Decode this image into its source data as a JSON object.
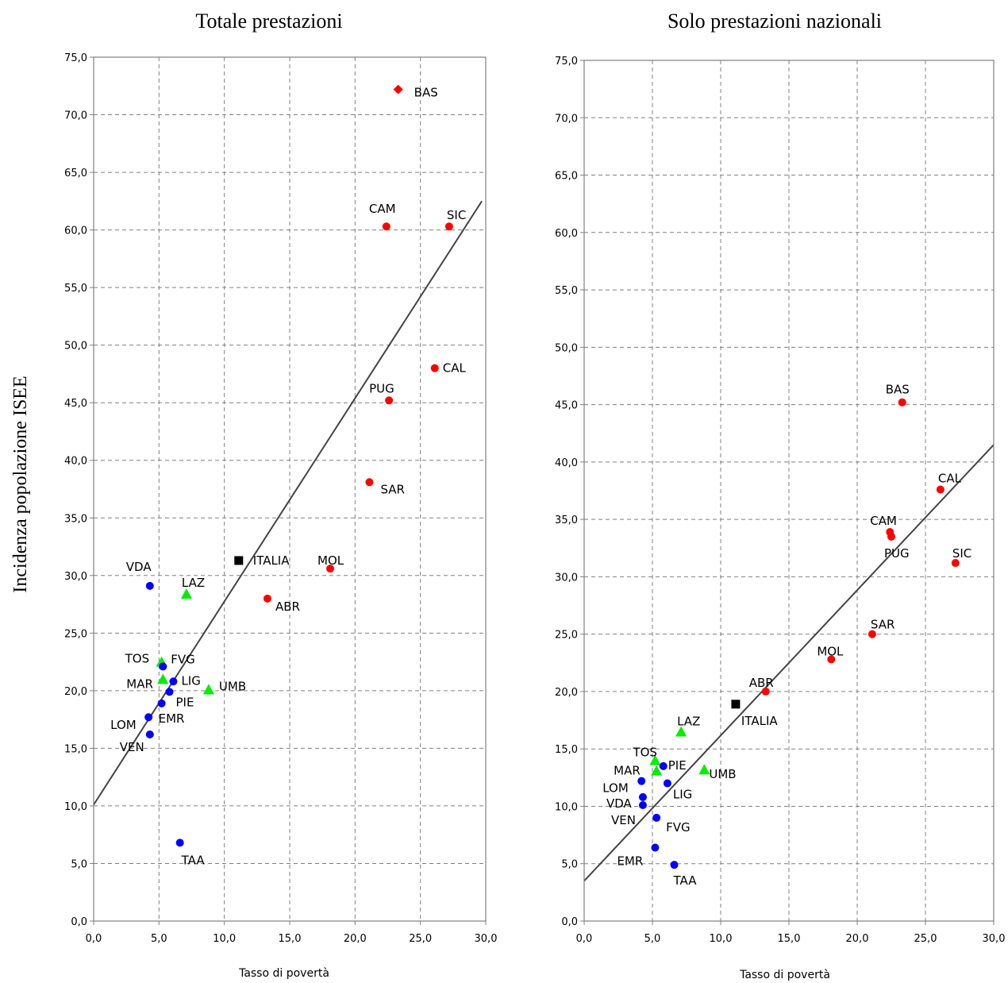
{
  "ylabel": "Incidenza popolazione ISEE",
  "colors": {
    "south": "#ff0000",
    "centre": "#00ee00",
    "north": "#0000ff",
    "italy": "#000000"
  },
  "chart_data": [
    {
      "type": "scatter",
      "title": "Totale prestazioni",
      "xlabel": "Tasso di povertà",
      "xlim": [
        0,
        30
      ],
      "ylim": [
        0,
        75
      ],
      "x_ticks": [
        "0,0",
        "5,0",
        "10,0",
        "15,0",
        "20,0",
        "25,0",
        "30,0"
      ],
      "y_ticks": [
        "0,0",
        "5,0",
        "10,0",
        "15,0",
        "20,0",
        "25,0",
        "30,0",
        "35,0",
        "40,0",
        "45,0",
        "50,0",
        "55,0",
        "60,0",
        "65,0",
        "70,0",
        "75,0"
      ],
      "grid": true,
      "trendline": {
        "x": [
          0,
          29.7
        ],
        "y": [
          10.1,
          62.5
        ]
      },
      "points": [
        {
          "label": "BAS",
          "x": 23.3,
          "y": 72.2,
          "group": "south",
          "shape": "diamond"
        },
        {
          "label": "CAM",
          "x": 22.4,
          "y": 60.3,
          "group": "south",
          "shape": "circle"
        },
        {
          "label": "SIC",
          "x": 27.2,
          "y": 60.3,
          "group": "south",
          "shape": "circle"
        },
        {
          "label": "CAL",
          "x": 26.1,
          "y": 48.0,
          "group": "south",
          "shape": "circle"
        },
        {
          "label": "PUG",
          "x": 22.6,
          "y": 45.2,
          "group": "south",
          "shape": "circle"
        },
        {
          "label": "SAR",
          "x": 21.1,
          "y": 38.1,
          "group": "south",
          "shape": "circle"
        },
        {
          "label": "MOL",
          "x": 18.1,
          "y": 30.6,
          "group": "south",
          "shape": "circle"
        },
        {
          "label": "ABR",
          "x": 13.3,
          "y": 28.0,
          "group": "south",
          "shape": "circle"
        },
        {
          "label": "ITALIA",
          "x": 11.1,
          "y": 31.3,
          "group": "italy",
          "shape": "square"
        },
        {
          "label": "LAZ",
          "x": 7.1,
          "y": 28.4,
          "group": "centre",
          "shape": "triangle"
        },
        {
          "label": "TOS",
          "x": 5.2,
          "y": 22.5,
          "group": "centre",
          "shape": "triangle"
        },
        {
          "label": "MAR",
          "x": 5.3,
          "y": 21.0,
          "group": "centre",
          "shape": "triangle"
        },
        {
          "label": "UMB",
          "x": 8.8,
          "y": 20.1,
          "group": "centre",
          "shape": "triangle"
        },
        {
          "label": "VDA",
          "x": 4.3,
          "y": 29.1,
          "group": "north",
          "shape": "circle"
        },
        {
          "label": "FVG",
          "x": 5.3,
          "y": 22.1,
          "group": "north",
          "shape": "circle"
        },
        {
          "label": "LIG",
          "x": 6.1,
          "y": 20.8,
          "group": "north",
          "shape": "circle"
        },
        {
          "label": "PIE",
          "x": 5.8,
          "y": 19.9,
          "group": "north",
          "shape": "circle"
        },
        {
          "label": "EMR",
          "x": 5.2,
          "y": 18.9,
          "group": "north",
          "shape": "circle"
        },
        {
          "label": "LOM",
          "x": 4.2,
          "y": 17.7,
          "group": "north",
          "shape": "circle"
        },
        {
          "label": "VEN",
          "x": 4.3,
          "y": 16.2,
          "group": "north",
          "shape": "circle"
        },
        {
          "label": "TAA",
          "x": 6.6,
          "y": 6.8,
          "group": "north",
          "shape": "circle"
        }
      ]
    },
    {
      "type": "scatter",
      "title": "Solo prestazioni nazionali",
      "xlabel": "Tasso di povertà",
      "xlim": [
        0,
        30
      ],
      "ylim": [
        0,
        75
      ],
      "x_ticks": [
        "0,0",
        "5,0",
        "10,0",
        "15,0",
        "20,0",
        "25,0",
        "30,0"
      ],
      "y_ticks": [
        "0,0",
        "5,0",
        "10,0",
        "15,0",
        "20,0",
        "25,0",
        "30,0",
        "35,0",
        "40,0",
        "45,0",
        "50,0",
        "55,0",
        "60,0",
        "65,0",
        "70,0",
        "75,0"
      ],
      "grid": true,
      "trendline": {
        "x": [
          0,
          30
        ],
        "y": [
          3.5,
          41.5
        ]
      },
      "points": [
        {
          "label": "BAS",
          "x": 23.3,
          "y": 45.2,
          "group": "south",
          "shape": "circle"
        },
        {
          "label": "CAL",
          "x": 26.1,
          "y": 37.6,
          "group": "south",
          "shape": "circle"
        },
        {
          "label": "CAM",
          "x": 22.4,
          "y": 33.9,
          "group": "south",
          "shape": "circle"
        },
        {
          "label": "PUG",
          "x": 22.5,
          "y": 33.5,
          "group": "south",
          "shape": "circle"
        },
        {
          "label": "SIC",
          "x": 27.2,
          "y": 31.2,
          "group": "south",
          "shape": "circle"
        },
        {
          "label": "SAR",
          "x": 21.1,
          "y": 25.0,
          "group": "south",
          "shape": "circle"
        },
        {
          "label": "MOL",
          "x": 18.1,
          "y": 22.8,
          "group": "south",
          "shape": "circle"
        },
        {
          "label": "ABR",
          "x": 13.3,
          "y": 20.0,
          "group": "south",
          "shape": "circle"
        },
        {
          "label": "ITALIA",
          "x": 11.1,
          "y": 18.9,
          "group": "italy",
          "shape": "square"
        },
        {
          "label": "LAZ",
          "x": 7.1,
          "y": 16.5,
          "group": "centre",
          "shape": "triangle"
        },
        {
          "label": "TOS",
          "x": 5.2,
          "y": 14.0,
          "group": "centre",
          "shape": "triangle"
        },
        {
          "label": "MAR",
          "x": 5.3,
          "y": 13.1,
          "group": "centre",
          "shape": "triangle"
        },
        {
          "label": "UMB",
          "x": 8.8,
          "y": 13.2,
          "group": "centre",
          "shape": "triangle"
        },
        {
          "label": "PIE",
          "x": 5.8,
          "y": 13.5,
          "group": "north",
          "shape": "circle"
        },
        {
          "label": "LOM",
          "x": 4.2,
          "y": 12.2,
          "group": "north",
          "shape": "circle"
        },
        {
          "label": "LIG",
          "x": 6.1,
          "y": 12.0,
          "group": "north",
          "shape": "circle"
        },
        {
          "label": "VDA",
          "x": 4.3,
          "y": 10.8,
          "group": "north",
          "shape": "circle"
        },
        {
          "label": "VEN",
          "x": 4.3,
          "y": 10.1,
          "group": "north",
          "shape": "circle"
        },
        {
          "label": "FVG",
          "x": 5.3,
          "y": 9.0,
          "group": "north",
          "shape": "circle"
        },
        {
          "label": "EMR",
          "x": 5.2,
          "y": 6.4,
          "group": "north",
          "shape": "circle"
        },
        {
          "label": "TAA",
          "x": 6.6,
          "y": 4.9,
          "group": "north",
          "shape": "circle"
        }
      ]
    }
  ]
}
